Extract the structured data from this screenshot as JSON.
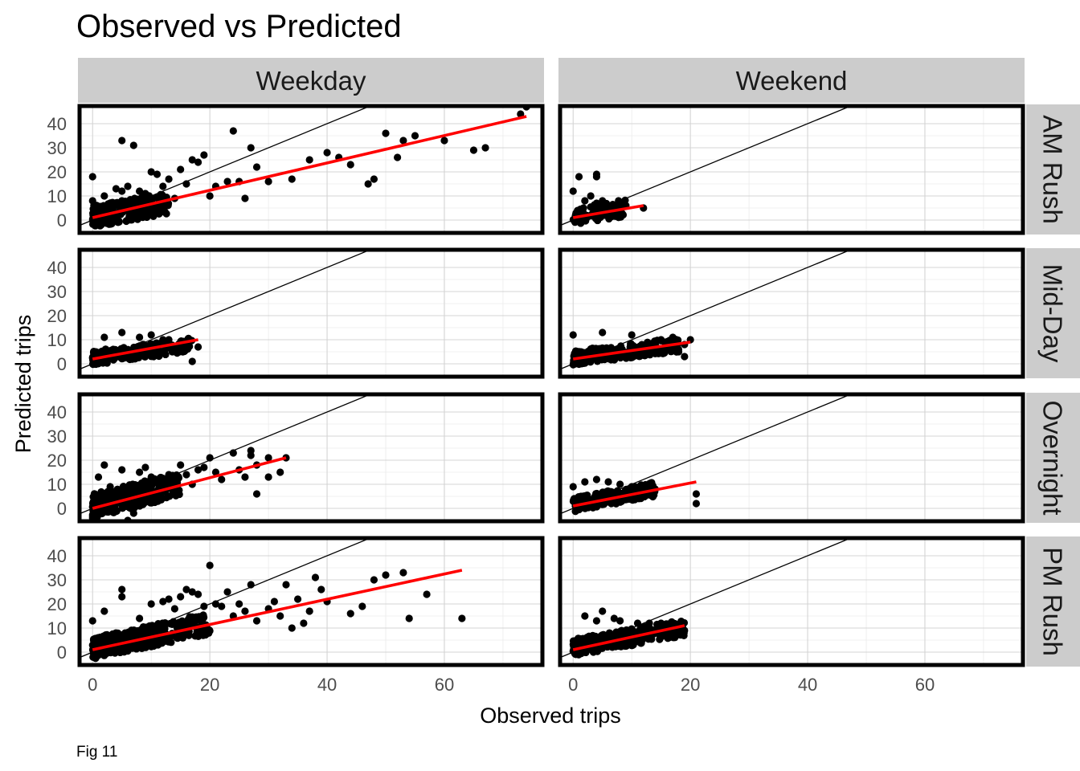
{
  "chart_data": {
    "type": "scatter",
    "title": "Observed vs Predicted",
    "xlabel": "Observed trips",
    "ylabel": "Predicted trips",
    "caption": "Fig 11",
    "columns": [
      "Weekday",
      "Weekend"
    ],
    "rows": [
      "AM Rush",
      "Mid-Day",
      "Overnight",
      "PM Rush"
    ],
    "x_ticks": [
      0,
      20,
      40,
      60
    ],
    "y_ticks": [
      0,
      10,
      20,
      30,
      40
    ],
    "xlim": [
      -2.5,
      77
    ],
    "ylim": [
      -6,
      48
    ],
    "grid": true,
    "reference_line": {
      "slope": 1,
      "intercept": 0,
      "color": "#000000"
    },
    "fit_color": "#ff0000",
    "point_color": "#000000",
    "panels": [
      {
        "column": "Weekday",
        "row": "AM Rush",
        "fit": [
          [
            0,
            1.0
          ],
          [
            74,
            43.0
          ]
        ],
        "points": [
          [
            0,
            18
          ],
          [
            0,
            8
          ],
          [
            1,
            5
          ],
          [
            2,
            10
          ],
          [
            2,
            3
          ],
          [
            3,
            7
          ],
          [
            4,
            13
          ],
          [
            5,
            33
          ],
          [
            5,
            8
          ],
          [
            5,
            12
          ],
          [
            6,
            5
          ],
          [
            6,
            14
          ],
          [
            7,
            31
          ],
          [
            8,
            8
          ],
          [
            8,
            12
          ],
          [
            9,
            11
          ],
          [
            10,
            20
          ],
          [
            11,
            19
          ],
          [
            11,
            5
          ],
          [
            12,
            14
          ],
          [
            13,
            17
          ],
          [
            14,
            9
          ],
          [
            15,
            21
          ],
          [
            16,
            15
          ],
          [
            17,
            25
          ],
          [
            18,
            24
          ],
          [
            19,
            27
          ],
          [
            20,
            10
          ],
          [
            21,
            14
          ],
          [
            23,
            16
          ],
          [
            24,
            37
          ],
          [
            25,
            16
          ],
          [
            26,
            9
          ],
          [
            27,
            30
          ],
          [
            28,
            22
          ],
          [
            30,
            16
          ],
          [
            34,
            17
          ],
          [
            37,
            25
          ],
          [
            40,
            28
          ],
          [
            42,
            26
          ],
          [
            44,
            23
          ],
          [
            47,
            15
          ],
          [
            48,
            17
          ],
          [
            50,
            36
          ],
          [
            52,
            26
          ],
          [
            53,
            33
          ],
          [
            55,
            35
          ],
          [
            60,
            33
          ],
          [
            65,
            29
          ],
          [
            67,
            30
          ],
          [
            73,
            44
          ],
          [
            74,
            47
          ]
        ],
        "dense": {
          "x": [
            0,
            13
          ],
          "y_center": [
            1.5,
            7
          ],
          "spread": 4.5,
          "count": 260
        }
      },
      {
        "column": "Weekend",
        "row": "AM Rush",
        "fit": [
          [
            0,
            1.0
          ],
          [
            12,
            6.0
          ]
        ],
        "points": [
          [
            0,
            12
          ],
          [
            1,
            18
          ],
          [
            2,
            8
          ],
          [
            3,
            10
          ],
          [
            4,
            18
          ],
          [
            4,
            7
          ],
          [
            4,
            19
          ],
          [
            5,
            8
          ],
          [
            6,
            5
          ],
          [
            7,
            6
          ],
          [
            8,
            5
          ],
          [
            9,
            6
          ],
          [
            12,
            5
          ]
        ],
        "dense": {
          "x": [
            0,
            9
          ],
          "y_center": [
            1.5,
            5
          ],
          "spread": 3.5,
          "count": 90
        }
      },
      {
        "column": "Weekday",
        "row": "Mid-Day",
        "fit": [
          [
            0,
            2.0
          ],
          [
            18,
            10.0
          ]
        ],
        "points": [
          [
            2,
            11
          ],
          [
            5,
            13
          ],
          [
            8,
            11
          ],
          [
            10,
            12
          ],
          [
            12,
            10
          ],
          [
            13,
            10
          ],
          [
            15,
            9
          ],
          [
            16,
            9
          ],
          [
            17,
            1
          ],
          [
            18,
            7
          ]
        ],
        "dense": {
          "x": [
            0,
            17
          ],
          "y_center": [
            2.5,
            8
          ],
          "spread": 3,
          "count": 220
        }
      },
      {
        "column": "Weekend",
        "row": "Mid-Day",
        "fit": [
          [
            0,
            2.0
          ],
          [
            20,
            9.0
          ]
        ],
        "points": [
          [
            0,
            12
          ],
          [
            5,
            13
          ],
          [
            10,
            12
          ],
          [
            14,
            8
          ],
          [
            15,
            10
          ],
          [
            17,
            11
          ],
          [
            18,
            5
          ],
          [
            19,
            3
          ],
          [
            19,
            8
          ],
          [
            20,
            10
          ]
        ],
        "dense": {
          "x": [
            0,
            18
          ],
          "y_center": [
            2.5,
            8
          ],
          "spread": 3,
          "count": 220
        }
      },
      {
        "column": "Weekday",
        "row": "Overnight",
        "fit": [
          [
            0,
            0.0
          ],
          [
            33,
            21.0
          ]
        ],
        "points": [
          [
            0,
            -4
          ],
          [
            1,
            13
          ],
          [
            2,
            18
          ],
          [
            3,
            9
          ],
          [
            5,
            16
          ],
          [
            6,
            -5
          ],
          [
            7,
            -2
          ],
          [
            8,
            15
          ],
          [
            9,
            17
          ],
          [
            10,
            13
          ],
          [
            13,
            14
          ],
          [
            14,
            10
          ],
          [
            15,
            18
          ],
          [
            16,
            14
          ],
          [
            17,
            10
          ],
          [
            18,
            16
          ],
          [
            19,
            17
          ],
          [
            20,
            21
          ],
          [
            21,
            15
          ],
          [
            22,
            12
          ],
          [
            24,
            23
          ],
          [
            25,
            16
          ],
          [
            26,
            13
          ],
          [
            27,
            24
          ],
          [
            27,
            22
          ],
          [
            28,
            18
          ],
          [
            28,
            6
          ],
          [
            30,
            13
          ],
          [
            30,
            21
          ],
          [
            32,
            15
          ],
          [
            33,
            21
          ]
        ],
        "dense": {
          "x": [
            0,
            15
          ],
          "y_center": [
            1,
            10
          ],
          "spread": 5,
          "count": 300
        }
      },
      {
        "column": "Weekend",
        "row": "Overnight",
        "fit": [
          [
            0,
            1.0
          ],
          [
            21,
            11.0
          ]
        ],
        "points": [
          [
            0,
            9
          ],
          [
            2,
            11
          ],
          [
            4,
            12
          ],
          [
            6,
            11
          ],
          [
            8,
            10
          ],
          [
            10,
            9
          ],
          [
            12,
            8
          ],
          [
            13,
            8
          ],
          [
            14,
            8
          ],
          [
            21,
            6
          ],
          [
            21,
            2
          ]
        ],
        "dense": {
          "x": [
            0,
            14
          ],
          "y_center": [
            1.5,
            8
          ],
          "spread": 3,
          "count": 200
        }
      },
      {
        "column": "Weekday",
        "row": "PM Rush",
        "fit": [
          [
            0,
            1.0
          ],
          [
            63,
            34.0
          ]
        ],
        "points": [
          [
            0,
            13
          ],
          [
            2,
            17
          ],
          [
            5,
            26
          ],
          [
            5,
            23
          ],
          [
            8,
            14
          ],
          [
            10,
            20
          ],
          [
            12,
            21
          ],
          [
            13,
            22
          ],
          [
            14,
            18
          ],
          [
            15,
            23
          ],
          [
            16,
            26
          ],
          [
            17,
            25
          ],
          [
            18,
            24
          ],
          [
            19,
            19
          ],
          [
            20,
            36
          ],
          [
            21,
            20
          ],
          [
            22,
            19
          ],
          [
            23,
            25
          ],
          [
            24,
            15
          ],
          [
            25,
            20
          ],
          [
            26,
            17
          ],
          [
            27,
            28
          ],
          [
            28,
            13
          ],
          [
            30,
            18
          ],
          [
            31,
            21
          ],
          [
            32,
            15
          ],
          [
            33,
            28
          ],
          [
            34,
            10
          ],
          [
            35,
            22
          ],
          [
            36,
            12
          ],
          [
            37,
            17
          ],
          [
            38,
            31
          ],
          [
            39,
            26
          ],
          [
            40,
            21
          ],
          [
            44,
            16
          ],
          [
            46,
            19
          ],
          [
            48,
            30
          ],
          [
            50,
            32
          ],
          [
            53,
            33
          ],
          [
            54,
            14
          ],
          [
            57,
            24
          ],
          [
            63,
            14
          ]
        ],
        "dense": {
          "x": [
            0,
            20
          ],
          "y_center": [
            1.5,
            12
          ],
          "spread": 4.5,
          "count": 360
        }
      },
      {
        "column": "Weekend",
        "row": "PM Rush",
        "fit": [
          [
            0,
            1.0
          ],
          [
            19,
            11.0
          ]
        ],
        "points": [
          [
            2,
            15
          ],
          [
            4,
            13
          ],
          [
            5,
            17
          ],
          [
            7,
            14
          ],
          [
            8,
            13
          ],
          [
            11,
            12
          ],
          [
            13,
            12
          ],
          [
            15,
            12
          ],
          [
            17,
            11
          ],
          [
            19,
            9
          ]
        ],
        "dense": {
          "x": [
            0,
            19
          ],
          "y_center": [
            2,
            10
          ],
          "spread": 3.5,
          "count": 300
        }
      }
    ]
  }
}
